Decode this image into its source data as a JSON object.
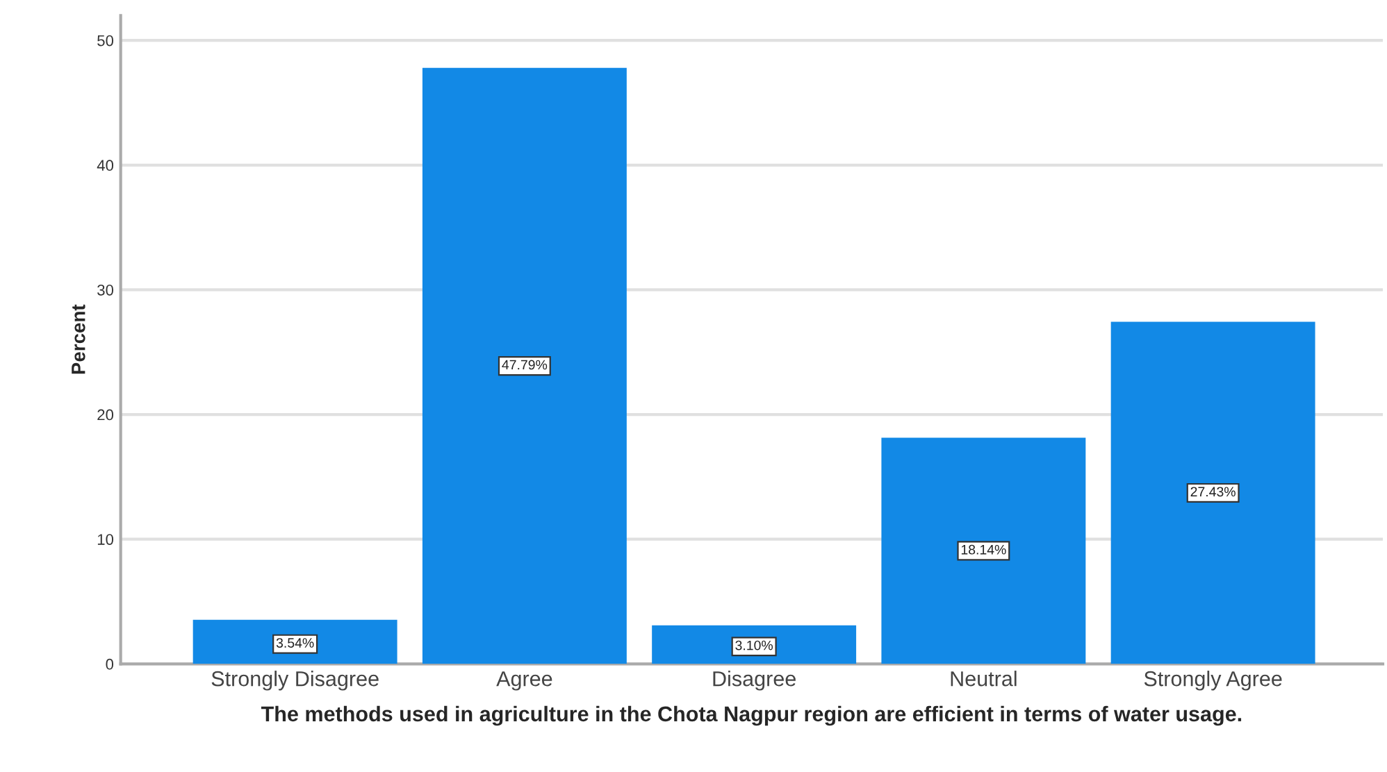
{
  "chart_data": {
    "type": "bar",
    "xlabel": "The methods used in agriculture in the Chota Nagpur region are efficient in terms of water usage.",
    "ylabel": "Percent",
    "categories": [
      "Strongly Disagree",
      "Agree",
      "Disagree",
      "Neutral",
      "Strongly Agree"
    ],
    "values": [
      3.54,
      47.79,
      3.1,
      18.14,
      27.43
    ],
    "value_labels": [
      "3.54%",
      "47.79%",
      "3.10%",
      "18.14%",
      "27.43%"
    ],
    "color": "#1289e6",
    "ylim": [
      0,
      52
    ],
    "yticks": [
      0,
      10,
      20,
      30,
      40,
      50
    ],
    "grid": "y"
  }
}
